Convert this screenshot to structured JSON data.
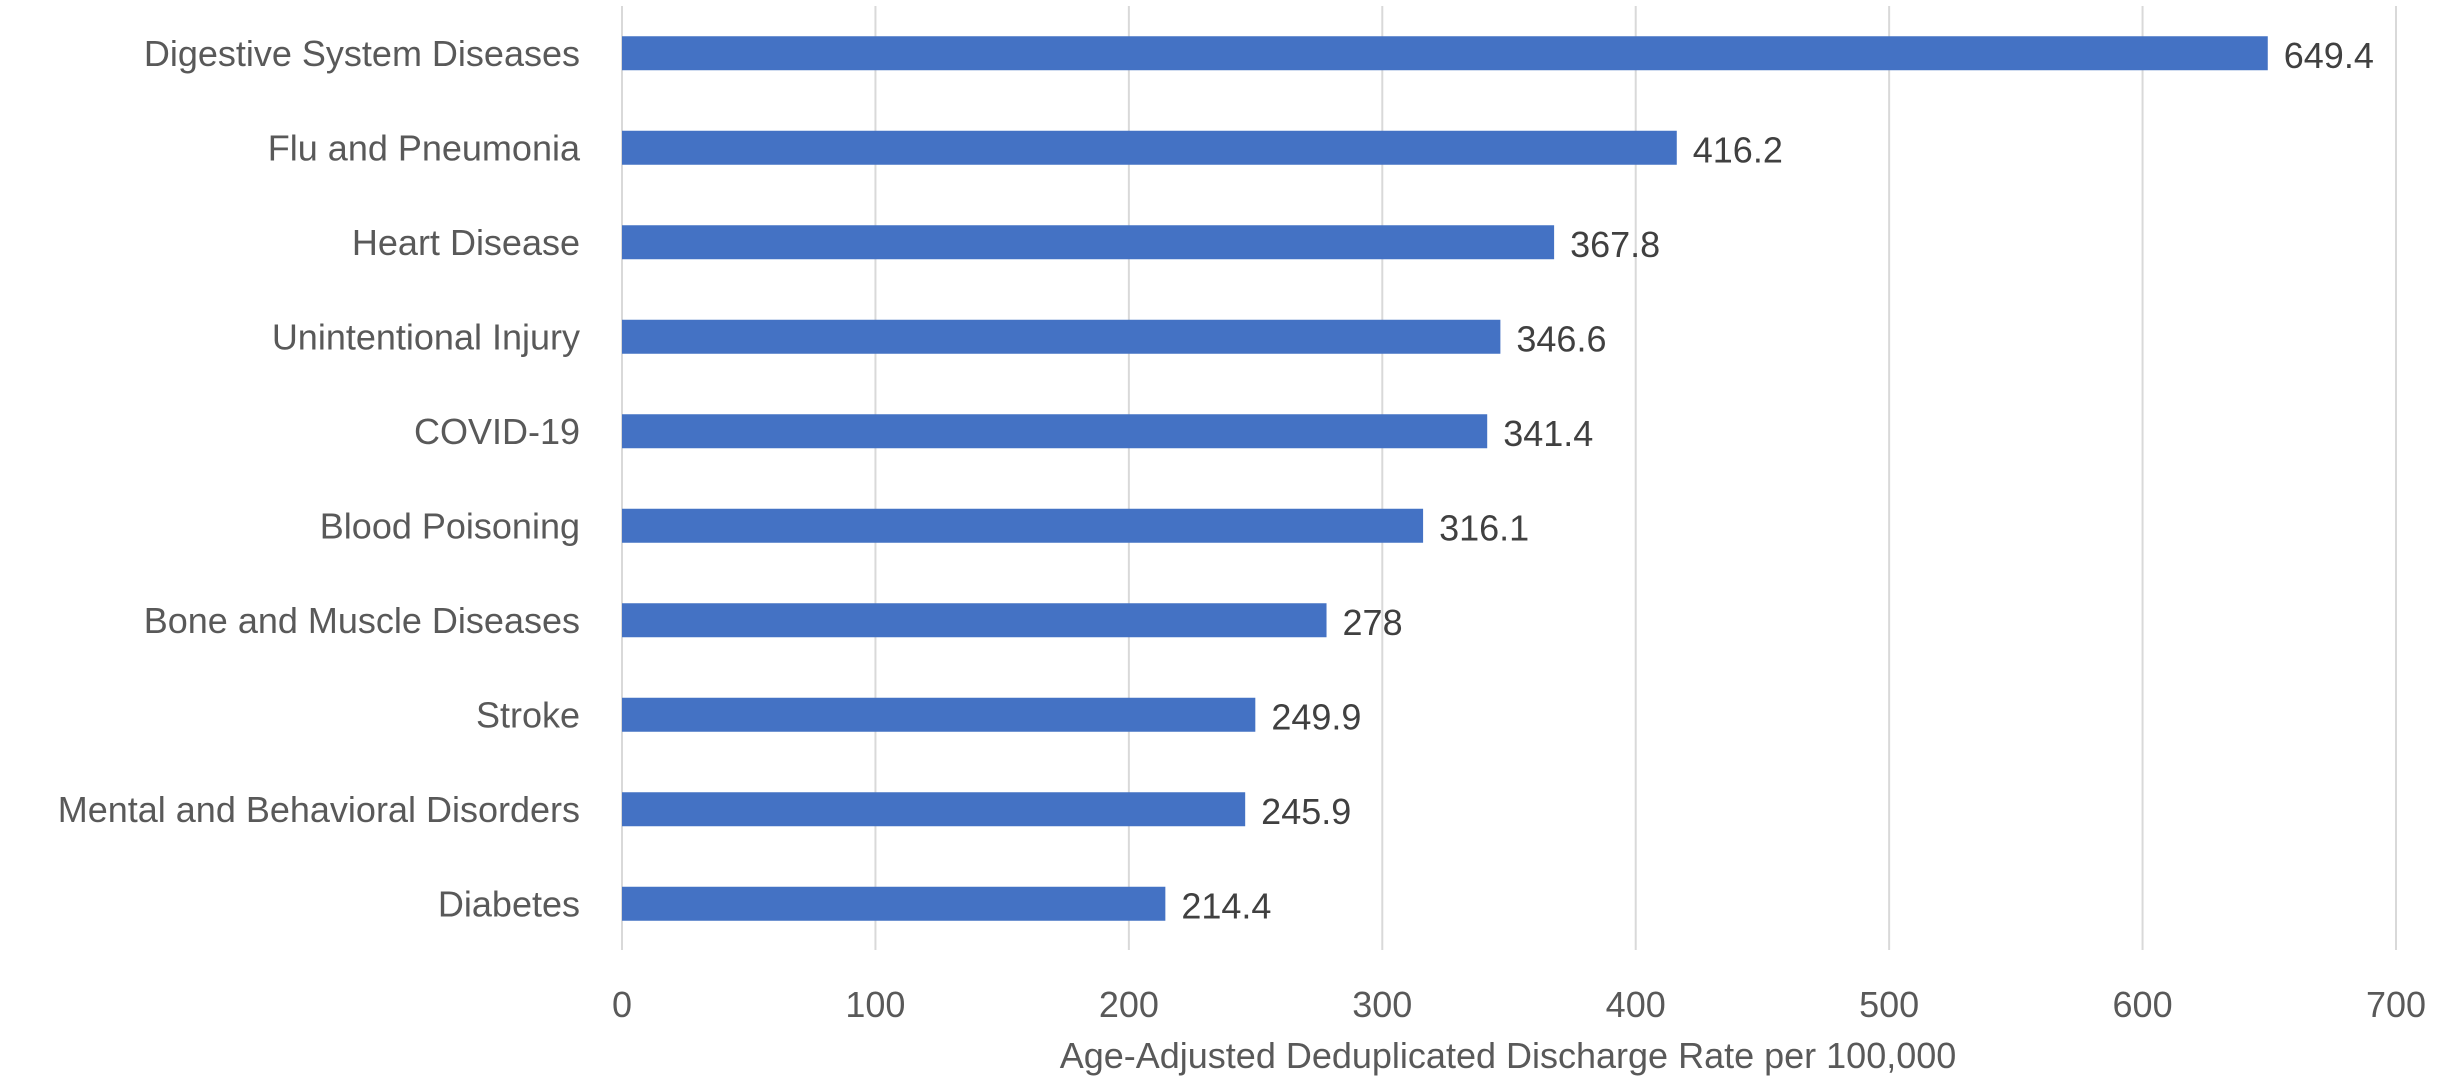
{
  "chart_data": {
    "type": "bar",
    "orientation": "horizontal",
    "title": "",
    "xlabel": "Age-Adjusted Deduplicated Discharge Rate per 100,000",
    "ylabel": "",
    "xlim": [
      0,
      700
    ],
    "x_ticks": [
      0,
      100,
      200,
      300,
      400,
      500,
      600,
      700
    ],
    "grid": "vertical",
    "legend": "none",
    "bar_color": "#4472C4",
    "categories": [
      "Digestive System Diseases",
      "Flu and Pneumonia",
      "Heart Disease",
      "Unintentional Injury",
      "COVID-19",
      "Blood Poisoning",
      "Bone and Muscle Diseases",
      "Stroke",
      "Mental and Behavioral Disorders",
      "Diabetes"
    ],
    "values": [
      649.4,
      416.2,
      367.8,
      346.6,
      341.4,
      316.1,
      278,
      249.9,
      245.9,
      214.4
    ],
    "data_labels": [
      "649.4",
      "416.2",
      "367.8",
      "346.6",
      "341.4",
      "316.1",
      "278",
      "249.9",
      "245.9",
      "214.4"
    ]
  }
}
